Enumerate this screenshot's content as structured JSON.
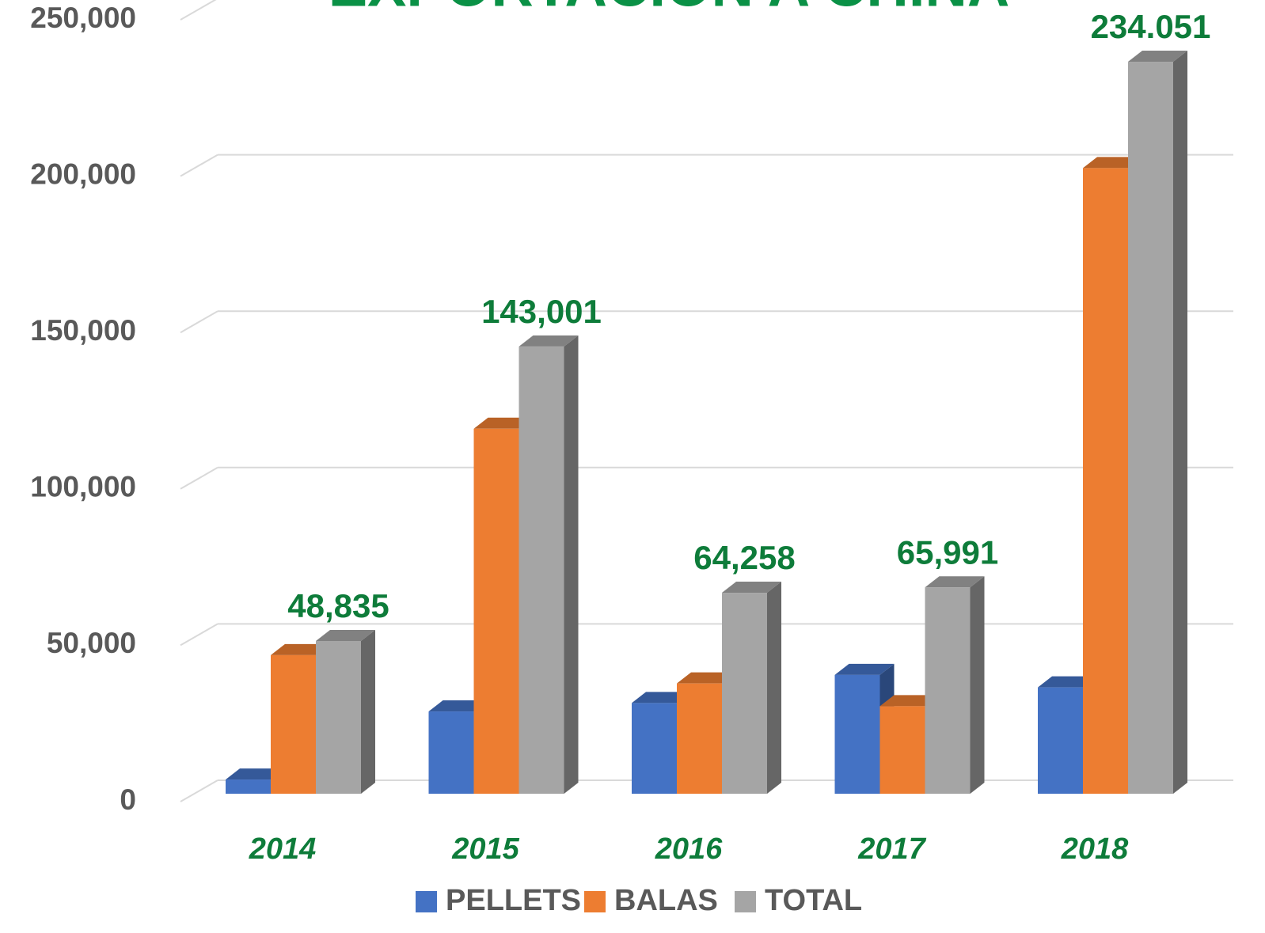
{
  "chart_data": {
    "type": "bar3d",
    "title": "EXPORTACIÓN A CHINA",
    "categories": [
      "2014",
      "2015",
      "2016",
      "2017",
      "2018"
    ],
    "series": [
      {
        "name": "PELLETS",
        "color": "#4472c4",
        "values": [
          4535,
          26300,
          29000,
          38000,
          34000
        ]
      },
      {
        "name": "BALAS",
        "color": "#ed7d31",
        "values": [
          44300,
          116701,
          35258,
          27991,
          200051
        ]
      },
      {
        "name": "TOTAL",
        "color": "#a5a5a5",
        "values": [
          48835,
          143001,
          64258,
          65991,
          234051
        ],
        "value_labels": [
          "48,835",
          "143,001",
          "64,258",
          "65,991",
          "234.051"
        ]
      }
    ],
    "ylim": [
      0,
      250000
    ],
    "yticks": [
      0,
      {
        "value": 50000,
        "label": "50,000"
      },
      {
        "value": 100000,
        "label": "100,000"
      },
      {
        "value": 150000,
        "label": "150,000"
      },
      {
        "value": 200000,
        "label": "200,000"
      },
      {
        "value": 250000,
        "label": "250,000"
      }
    ],
    "grid": true,
    "legend": "bottom"
  }
}
